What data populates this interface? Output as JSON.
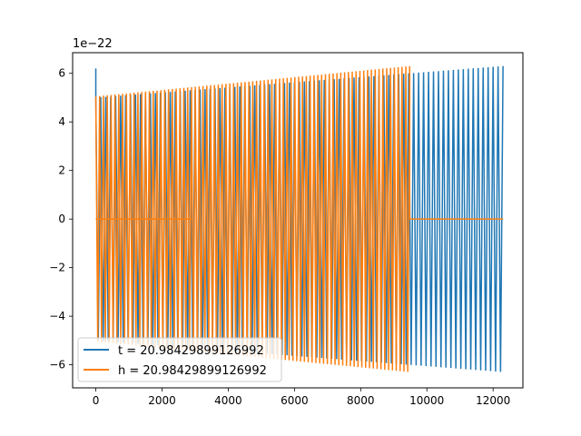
{
  "chart_data": {
    "type": "line",
    "title": "",
    "xlabel": "",
    "ylabel": "",
    "xlim": [
      -700,
      12900
    ],
    "ylim": [
      -6.95,
      6.85
    ],
    "y_scale_label": "1e−22",
    "x_ticks": [
      0,
      2000,
      4000,
      6000,
      8000,
      10000,
      12000
    ],
    "y_ticks": [
      -6,
      -4,
      -2,
      0,
      2,
      4,
      6
    ],
    "grid": false,
    "legend_position": "lower-left",
    "series": [
      {
        "name": "t = 20.98429899126992",
        "color": "#1f77b4",
        "x_range": [
          0,
          12300
        ],
        "start_amplitude": 5.0,
        "end_amplitude": 6.3,
        "initial_spike": 6.2,
        "cycles": 82
      },
      {
        "name": "h = 20.98429899126992",
        "color": "#ff7f0e",
        "x_range": [
          0,
          9480
        ],
        "start_amplitude": 5.05,
        "end_amplitude": 6.3,
        "cycles": 82,
        "flat_after": 9480,
        "flat_until": 12300,
        "flat_value": 0
      }
    ]
  }
}
